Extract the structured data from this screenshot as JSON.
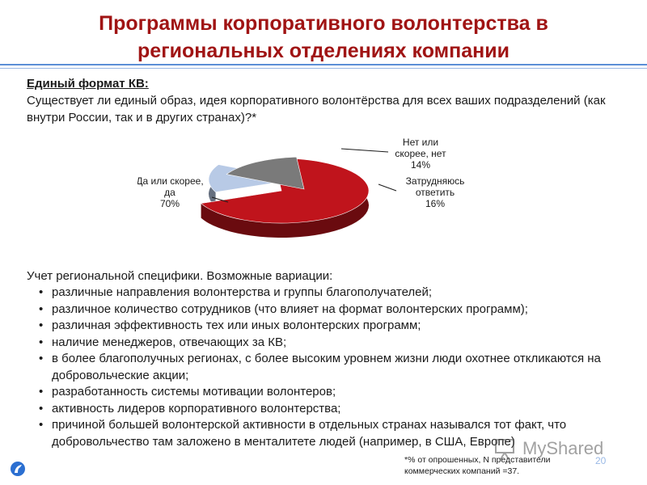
{
  "title": "Программы корпоративного волонтерства в региональных отделениях компании",
  "section_heading": "Единый формат КВ:",
  "question": "Существует ли единый образ, идея корпоративного волонтёрства для всех ваших подразделений (как внутри России, так и в других странах)?*",
  "chart_data": {
    "type": "pie",
    "categories": [
      "Да или скорее, да",
      "Нет или скорее, нет",
      "Затрудняюсь ответить"
    ],
    "values": [
      70,
      14,
      16
    ],
    "colors": [
      "#c0141c",
      "#b8cae6",
      "#7a7a7a"
    ],
    "labels": [
      {
        "lines": [
          "Да или скорее,",
          "да",
          "70%"
        ]
      },
      {
        "lines": [
          "Нет или",
          "скорее, нет",
          "14%"
        ]
      },
      {
        "lines": [
          "Затрудняюсь",
          "ответить",
          "16%"
        ]
      }
    ]
  },
  "variations_title": "Учет региональной специфики. Возможные вариации:",
  "bullets": [
    "различные направления волонтерства и группы благополучателей;",
    "различное количество сотрудников (что влияет на формат волонтерских программ);",
    "различная эффективность тех или иных волонтерских программ;",
    "наличие менеджеров, отвечающих за КВ;",
    "в более благополучных регионах, с более высоким уровнем жизни люди охотнее откликаются на добровольческие акции;",
    "разработанность системы мотивации волонтеров;",
    "активность лидеров корпоративного волонтерства;",
    "причиной большей волонтерской активности в отдельных странах назывался тот факт, что добровольчество там заложено в менталитете людей (например, в США, Европе)"
  ],
  "footnote": "*% от опрошенных, N представители коммерческих компаний =37.",
  "page_number": "20",
  "watermark": "MyShared",
  "icons": {
    "logo": "company-logo-icon",
    "watermark": "presentation-icon"
  }
}
